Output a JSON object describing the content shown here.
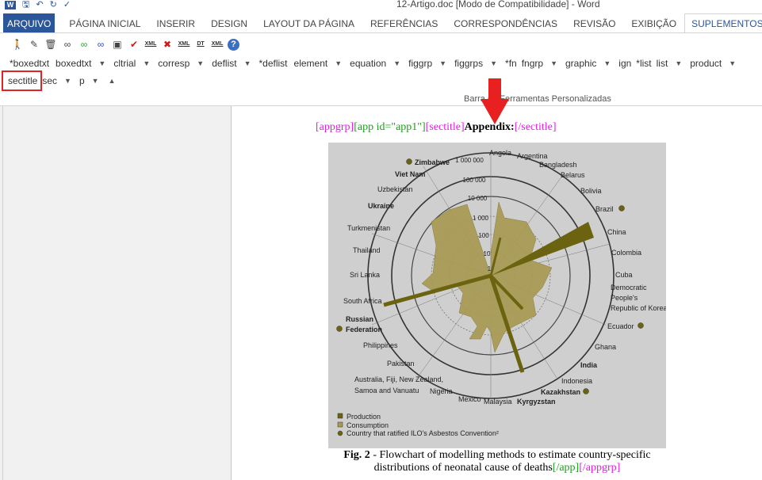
{
  "window": {
    "title": "12-Artigo.doc [Modo de Compatibilidade] - Word"
  },
  "quick_access": {
    "word_icon": "word-icon",
    "save_icon": "save-icon",
    "undo_icon": "undo-icon",
    "redo_icon": "redo-icon",
    "spelling_icon": "spelling-icon"
  },
  "tabs": [
    {
      "label": "ARQUIVO"
    },
    {
      "label": "PÁGINA INICIAL"
    },
    {
      "label": "INSERIR"
    },
    {
      "label": "DESIGN"
    },
    {
      "label": "LAYOUT DA PÁGINA"
    },
    {
      "label": "REFERÊNCIAS"
    },
    {
      "label": "CORRESPONDÊNCIAS"
    },
    {
      "label": "REVISÃO"
    },
    {
      "label": "EXIBIÇÃO"
    },
    {
      "label": "SUPLEMENTOS"
    }
  ],
  "tag_row_1": [
    "*boxedtxt",
    "boxedtxt",
    "cltrial",
    "corresp",
    "deflist",
    "*deflist",
    "element",
    "equation",
    "figgrp",
    "figgrps",
    "*fn",
    "fngrp",
    "graphic",
    "ign",
    "*list",
    "list",
    "product"
  ],
  "tag_row_2": {
    "selected": "sectitle",
    "others": [
      "sec",
      "p"
    ]
  },
  "ribbon_group_label": "Barra de Ferramentas Personalizadas",
  "document": {
    "headline": {
      "open_appgrp": "[appgrp]",
      "open_app": "[app id=\"app1\"]",
      "open_sectitle": "[sectitle]",
      "title": "Appendix:",
      "close_sectitle": "[/sectitle]"
    },
    "caption": {
      "label": "Fig. 2",
      "text": " - Flowchart of modelling methods to estimate country-specific distributions of neonatal cause of deaths",
      "close_app": "[/app]",
      "close_appgrp": "[/appgrp]"
    }
  },
  "figure": {
    "rings": [
      "1 000 000",
      "10 000",
      "100",
      "10",
      "1"
    ],
    "ring_upper": "100 000",
    "ring_mid": "1 000",
    "countries": [
      {
        "name": "Angola",
        "bold": false
      },
      {
        "name": "Argentina",
        "bold": false
      },
      {
        "name": "Bangladesh",
        "bold": false
      },
      {
        "name": "Belarus",
        "bold": false
      },
      {
        "name": "Bolivia",
        "bold": false
      },
      {
        "name": "Brazil",
        "bold": false
      },
      {
        "name": "China",
        "bold": false
      },
      {
        "name": "Colombia",
        "bold": false
      },
      {
        "name": "Cuba",
        "bold": false
      },
      {
        "name": "Democratic People's Republic of Korea",
        "bold": false
      },
      {
        "name": "Ecuador",
        "bold": false
      },
      {
        "name": "Ghana",
        "bold": false
      },
      {
        "name": "India",
        "bold": true
      },
      {
        "name": "Indonesia",
        "bold": false
      },
      {
        "name": "Kazakhstan",
        "bold": true
      },
      {
        "name": "Kyrgyzstan",
        "bold": true
      },
      {
        "name": "Malaysia",
        "bold": false
      },
      {
        "name": "Mexico",
        "bold": false
      },
      {
        "name": "Nigeria",
        "bold": false
      },
      {
        "name": "Australia, Fiji, New Zealand, Samoa and Vanuatu",
        "bold": false
      },
      {
        "name": "Pakistan",
        "bold": false
      },
      {
        "name": "Philippines",
        "bold": false
      },
      {
        "name": "Russian Federation",
        "bold": true
      },
      {
        "name": "South Africa",
        "bold": false
      },
      {
        "name": "Sri Lanka",
        "bold": false
      },
      {
        "name": "Thailand",
        "bold": false
      },
      {
        "name": "Turkmenistan",
        "bold": false
      },
      {
        "name": "Ukraine",
        "bold": true
      },
      {
        "name": "Uzbekistan",
        "bold": false
      },
      {
        "name": "Viet Nam",
        "bold": true
      },
      {
        "name": "Zimbabwe",
        "bold": true
      }
    ],
    "legend": [
      "Production",
      "Consumption",
      "Country that ratified ILO's Asbestos Convention²"
    ],
    "colors": {
      "consumption": "#a89a52",
      "production": "#6b6310",
      "background": "#cfcfcf",
      "ring": "#333333"
    }
  }
}
